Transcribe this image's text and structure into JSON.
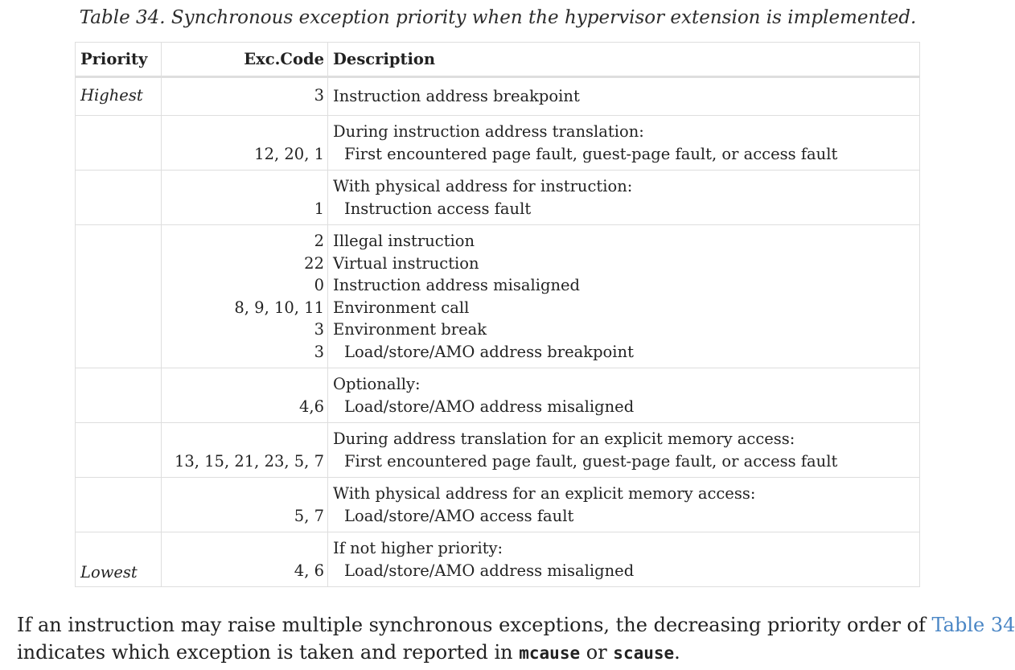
{
  "caption": "Table 34. Synchronous exception priority when the hypervisor extension is implemented.",
  "table": {
    "headers": {
      "priority": "Priority",
      "code": "Exc.Code",
      "description": "Description"
    },
    "rows": [
      {
        "priority": "Highest",
        "codes": [
          "3"
        ],
        "lines": [
          {
            "text": "Instruction address breakpoint",
            "indent": false
          }
        ]
      },
      {
        "priority": "",
        "codes": [
          "",
          "12, 20, 1"
        ],
        "lines": [
          {
            "text": "During instruction address translation:",
            "indent": false
          },
          {
            "text": "First encountered page fault, guest-page fault, or access fault",
            "indent": true
          }
        ]
      },
      {
        "priority": "",
        "codes": [
          "",
          "1"
        ],
        "lines": [
          {
            "text": "With physical address for instruction:",
            "indent": false
          },
          {
            "text": "Instruction access fault",
            "indent": true
          }
        ]
      },
      {
        "priority": "",
        "codes": [
          "2",
          "22",
          "0",
          "8, 9, 10, 11",
          "3",
          "3"
        ],
        "lines": [
          {
            "text": "Illegal instruction",
            "indent": false
          },
          {
            "text": "Virtual instruction",
            "indent": false
          },
          {
            "text": "Instruction address misaligned",
            "indent": false
          },
          {
            "text": "Environment call",
            "indent": false
          },
          {
            "text": "Environment break",
            "indent": false
          },
          {
            "text": "Load/store/AMO address breakpoint",
            "indent": true
          }
        ]
      },
      {
        "priority": "",
        "codes": [
          "",
          "4,6"
        ],
        "lines": [
          {
            "text": "Optionally:",
            "indent": false
          },
          {
            "text": "Load/store/AMO address misaligned",
            "indent": true
          }
        ]
      },
      {
        "priority": "",
        "codes": [
          "",
          "13, 15, 21, 23, 5, 7"
        ],
        "lines": [
          {
            "text": "During address translation for an explicit memory access:",
            "indent": false
          },
          {
            "text": "First encountered page fault, guest-page fault, or access fault",
            "indent": true
          }
        ]
      },
      {
        "priority": "",
        "codes": [
          "",
          "5, 7"
        ],
        "lines": [
          {
            "text": "With physical address for an explicit memory access:",
            "indent": false
          },
          {
            "text": "Load/store/AMO access fault",
            "indent": true
          }
        ]
      },
      {
        "priority": "Lowest",
        "codes": [
          "",
          "4, 6"
        ],
        "lines": [
          {
            "text": "If not higher priority:",
            "indent": false
          },
          {
            "text": "Load/store/AMO address misaligned",
            "indent": true
          }
        ]
      }
    ]
  },
  "paragraph": {
    "text1": "If an instruction may raise multiple synchronous exceptions, the decreasing priority order of ",
    "link": "Table 34",
    "text2": "indicates which exception is taken and reported in ",
    "code1": "mcause",
    "text3": " or ",
    "code2": "scause",
    "text4": "."
  }
}
